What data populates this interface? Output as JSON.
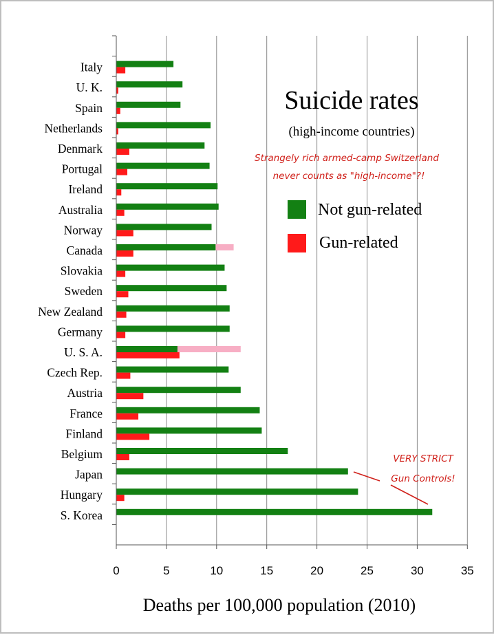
{
  "chart_data": {
    "type": "bar",
    "orientation": "horizontal",
    "stacked": false,
    "title": "Suicide rates",
    "subtitle": "(high-income countries)",
    "xlabel": "Deaths per 100,000 population (2010)",
    "ylabel": "",
    "xlim": [
      0,
      35
    ],
    "x_ticks": [
      0,
      5,
      10,
      15,
      20,
      25,
      30,
      35
    ],
    "grid": true,
    "legend_position": "right",
    "categories": [
      "Italy",
      "U. K.",
      "Spain",
      "Netherlands",
      "Denmark",
      "Portugal",
      "Ireland",
      "Australia",
      "Norway",
      "Canada",
      "Slovakia",
      "Sweden",
      "New Zealand",
      "Germany",
      "U. S. A.",
      "Czech Rep.",
      "Austria",
      "France",
      "Finland",
      "Belgium",
      "Japan",
      "Hungary",
      "S. Korea"
    ],
    "series": [
      {
        "name": "Not gun-related",
        "color": "#138013",
        "values": [
          5.7,
          6.6,
          6.4,
          9.4,
          8.8,
          9.3,
          10.1,
          10.2,
          9.5,
          9.9,
          10.8,
          11.0,
          11.3,
          11.3,
          6.1,
          11.2,
          12.4,
          14.3,
          14.5,
          17.1,
          23.1,
          24.1,
          31.5
        ]
      },
      {
        "name": "Gun-related",
        "color": "#ff1a1a",
        "values": [
          0.9,
          0.2,
          0.4,
          0.2,
          1.3,
          1.1,
          0.5,
          0.8,
          1.7,
          1.7,
          0.9,
          1.2,
          1.0,
          0.9,
          6.3,
          1.4,
          2.7,
          2.2,
          3.3,
          1.3,
          0.0,
          0.8,
          0.0
        ]
      }
    ],
    "overlay_extensions": {
      "color": "#f7aec4",
      "items": [
        {
          "category": "Canada",
          "from": 9.9,
          "to": 11.7
        },
        {
          "category": "U. S. A.",
          "from": 6.1,
          "to": 12.4
        }
      ]
    },
    "annotations": [
      {
        "name": "switzerland-note",
        "color": "#d0201a",
        "lines": [
          "Strangely rich armed-camp Switzerland",
          "never counts as \"high-income\"?!"
        ]
      },
      {
        "name": "strict-controls-note",
        "color": "#d0201a",
        "lines": [
          "VERY STRICT",
          "Gun Controls!"
        ],
        "points_to": [
          "Japan",
          "S. Korea"
        ]
      }
    ]
  }
}
